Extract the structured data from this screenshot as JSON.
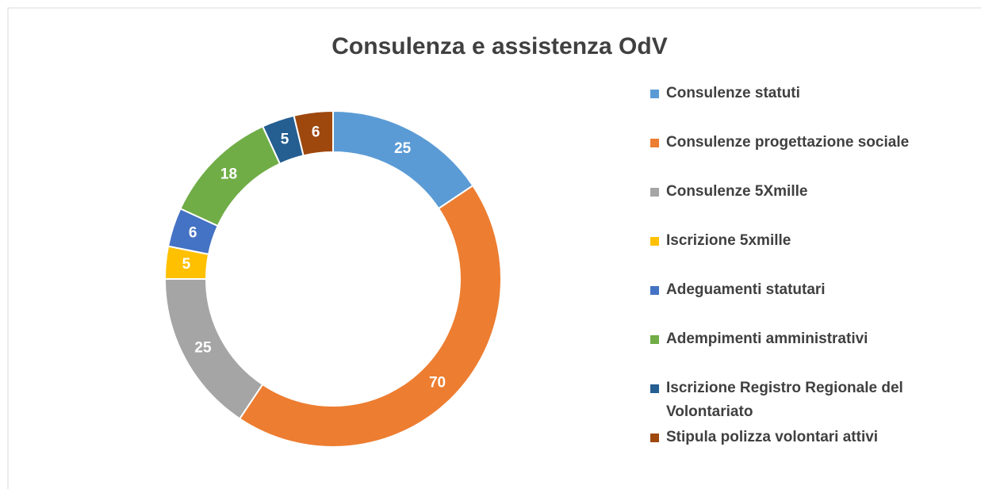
{
  "chart_data": {
    "type": "donut",
    "title": "Consulenza e assistenza OdV",
    "categories": [
      "Consulenze statuti",
      "Consulenze progettazione sociale",
      "Consulenze 5Xmille",
      "Iscrizione 5xmille",
      "Adeguamenti statutari",
      "Adempimenti amministrativi",
      "Iscrizione Registro Regionale del Volontariato",
      "Stipula polizza volontari attivi"
    ],
    "values": [
      25,
      70,
      25,
      5,
      6,
      18,
      5,
      6
    ],
    "colors": [
      "#5b9bd5",
      "#ed7d31",
      "#a5a5a5",
      "#ffc000",
      "#4472c4",
      "#70ad47",
      "#255e91",
      "#9e480e"
    ],
    "legend": "right"
  }
}
